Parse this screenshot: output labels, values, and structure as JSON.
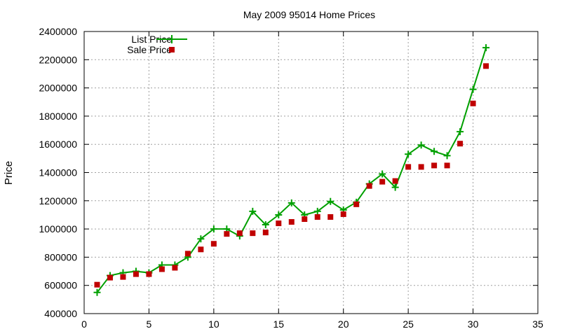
{
  "chart_data": {
    "type": "line",
    "title": "May 2009 95014 Home Prices",
    "xlabel": "",
    "ylabel": "Price",
    "xlim": [
      0,
      35
    ],
    "ylim": [
      400000,
      2400000
    ],
    "xticks": [
      0,
      5,
      10,
      15,
      20,
      25,
      30,
      35
    ],
    "yticks": [
      400000,
      600000,
      800000,
      1000000,
      1200000,
      1400000,
      1600000,
      1800000,
      2000000,
      2200000,
      2400000
    ],
    "grid": true,
    "legend_position": "top-left",
    "series": [
      {
        "name": "List Price",
        "style": "line-with-plus-markers",
        "color": "#00a000",
        "x": [
          1,
          2,
          3,
          4,
          5,
          6,
          7,
          8,
          9,
          10,
          11,
          12,
          13,
          14,
          15,
          16,
          17,
          18,
          19,
          20,
          21,
          22,
          23,
          24,
          25,
          26,
          27,
          28,
          29,
          30,
          31
        ],
        "y": [
          550000,
          670000,
          690000,
          700000,
          690000,
          745000,
          745000,
          800000,
          930000,
          1000000,
          1000000,
          950000,
          1125000,
          1030000,
          1100000,
          1185000,
          1100000,
          1125000,
          1195000,
          1135000,
          1190000,
          1320000,
          1390000,
          1295000,
          1530000,
          1595000,
          1550000,
          1520000,
          1690000,
          1990000,
          2285000
        ]
      },
      {
        "name": "Sale Price",
        "style": "square-markers",
        "color": "#c00000",
        "x": [
          1,
          2,
          3,
          4,
          5,
          6,
          7,
          8,
          9,
          10,
          11,
          12,
          13,
          14,
          15,
          16,
          17,
          18,
          19,
          20,
          21,
          22,
          23,
          24,
          25,
          26,
          27,
          28,
          29,
          30,
          31
        ],
        "y": [
          605000,
          655000,
          660000,
          680000,
          680000,
          715000,
          725000,
          825000,
          855000,
          895000,
          965000,
          970000,
          970000,
          975000,
          1040000,
          1050000,
          1070000,
          1085000,
          1085000,
          1105000,
          1175000,
          1305000,
          1335000,
          1340000,
          1440000,
          1440000,
          1450000,
          1450000,
          1605000,
          1890000,
          2155000
        ]
      }
    ]
  }
}
